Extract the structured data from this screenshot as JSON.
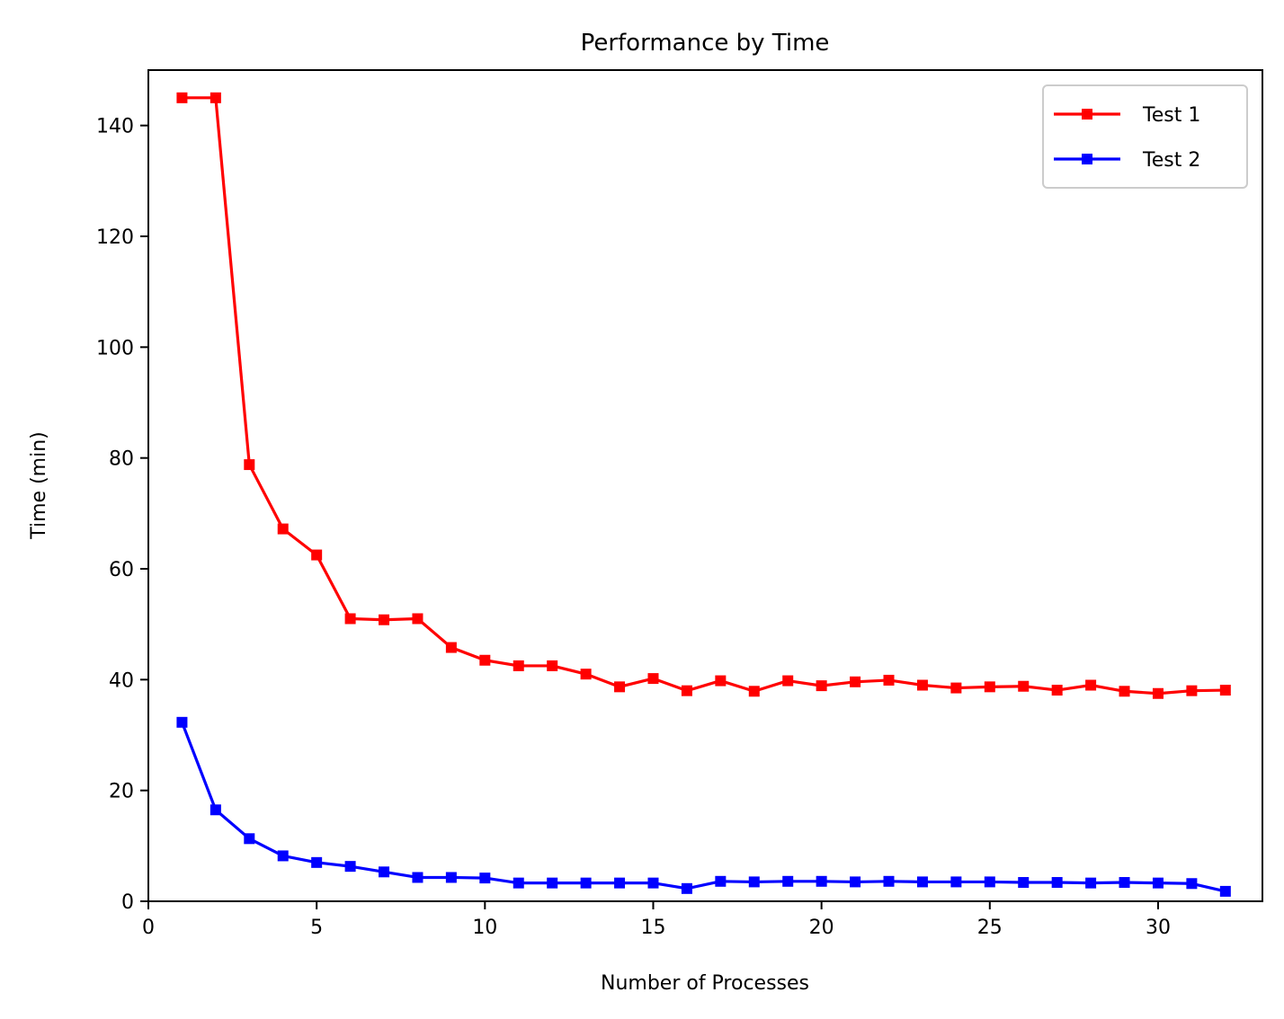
{
  "chart_data": {
    "type": "line",
    "title": "Performance by Time",
    "xlabel": "Number of Processes",
    "ylabel": "Time (min)",
    "xlim": [
      0,
      33.1
    ],
    "ylim": [
      0,
      150
    ],
    "xticks": [
      0,
      5,
      10,
      15,
      20,
      25,
      30
    ],
    "yticks": [
      0,
      20,
      40,
      60,
      80,
      100,
      120,
      140
    ],
    "grid": false,
    "legend_position": "top-right",
    "x": [
      1,
      2,
      3,
      4,
      5,
      6,
      7,
      8,
      9,
      10,
      11,
      12,
      13,
      14,
      15,
      16,
      17,
      18,
      19,
      20,
      21,
      22,
      23,
      24,
      25,
      26,
      27,
      28,
      29,
      30,
      31,
      32
    ],
    "series": [
      {
        "name": "Test 1",
        "color": "#ff0000",
        "marker": "square",
        "values": [
          145,
          145,
          78.8,
          67.2,
          62.5,
          51,
          50.8,
          51,
          45.8,
          43.5,
          42.5,
          42.5,
          41,
          38.7,
          40.2,
          38,
          39.8,
          37.9,
          39.8,
          38.9,
          39.6,
          39.9,
          39,
          38.5,
          38.7,
          38.8,
          38.1,
          39,
          37.9,
          37.5,
          38,
          38.1
        ]
      },
      {
        "name": "Test 2",
        "color": "#0000ff",
        "marker": "square",
        "values": [
          32.3,
          16.5,
          11.3,
          8.2,
          7,
          6.3,
          5.3,
          4.3,
          4.3,
          4.2,
          3.3,
          3.3,
          3.3,
          3.3,
          3.3,
          2.3,
          3.6,
          3.5,
          3.6,
          3.6,
          3.5,
          3.6,
          3.5,
          3.5,
          3.5,
          3.4,
          3.4,
          3.3,
          3.4,
          3.3,
          3.2,
          1.8
        ]
      }
    ]
  }
}
